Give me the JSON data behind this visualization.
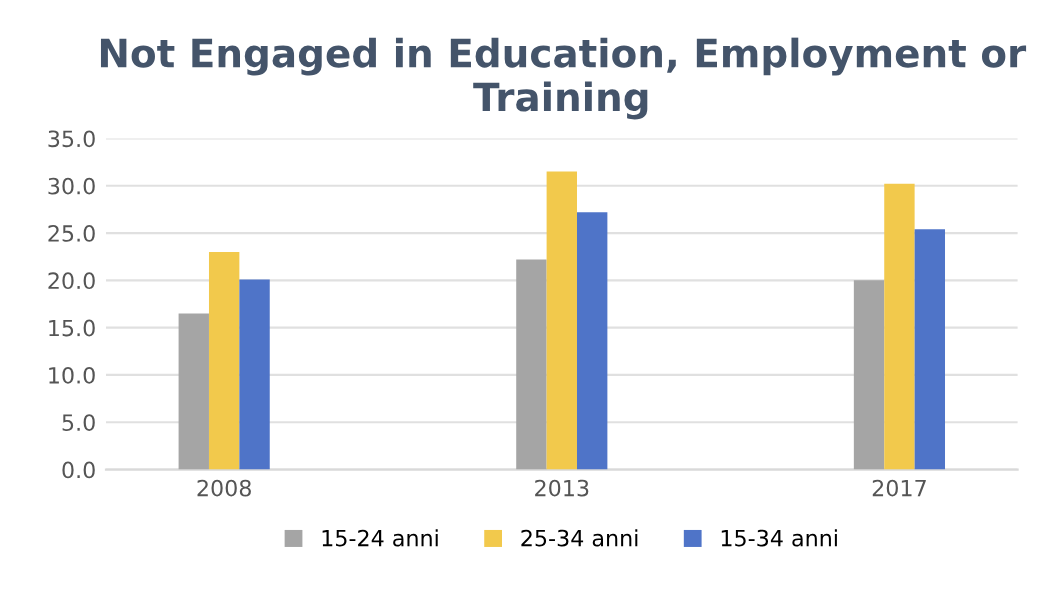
{
  "chart_data": {
    "type": "bar",
    "title": "Not Engaged in Education, Employment or Training",
    "categories": [
      "2008",
      "2013",
      "2017"
    ],
    "series": [
      {
        "name": "15-24 anni",
        "color": "#a5a5a5",
        "values": [
          16.5,
          22.2,
          20.0
        ]
      },
      {
        "name": "25-34 anni",
        "color": "#f2c94c",
        "values": [
          23.0,
          31.5,
          30.2
        ]
      },
      {
        "name": "15-34 anni",
        "color": "#4f74c8",
        "values": [
          20.1,
          27.2,
          25.4
        ]
      }
    ],
    "ylim": [
      0,
      35
    ],
    "yticks": [
      {
        "value": 0,
        "label": "0.0"
      },
      {
        "value": 5,
        "label": "5.0"
      },
      {
        "value": 10,
        "label": "10.0"
      },
      {
        "value": 15,
        "label": "15.0"
      },
      {
        "value": 20,
        "label": "20.0"
      },
      {
        "value": 25,
        "label": "25.0"
      },
      {
        "value": 30,
        "label": "30.0"
      },
      {
        "value": 35,
        "label": "35.0"
      }
    ],
    "grid": "y",
    "legend": "bottom"
  }
}
